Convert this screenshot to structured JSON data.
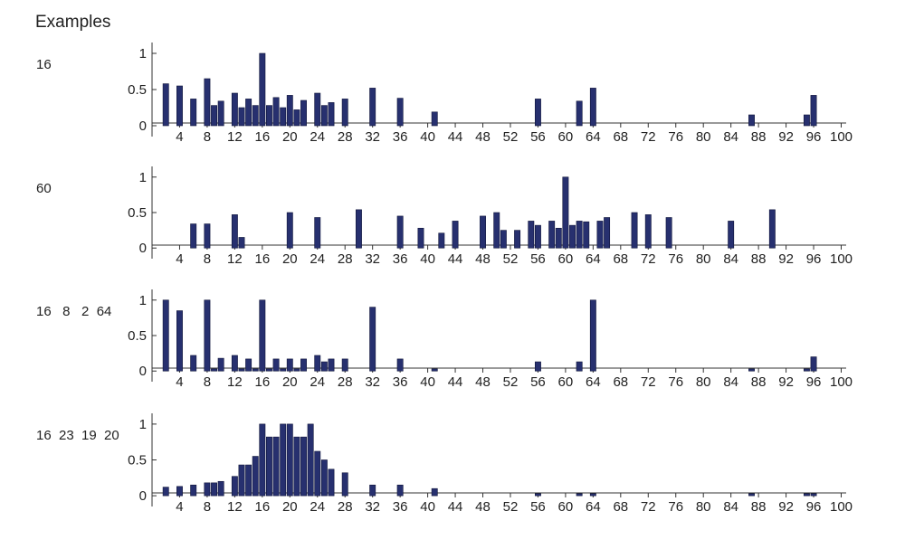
{
  "title": "Examples",
  "chart_data": [
    {
      "type": "bar",
      "example_label": "16",
      "xlim": [
        0,
        101
      ],
      "ylim": [
        -0.15,
        1.15
      ],
      "xticks": [
        4,
        8,
        12,
        16,
        20,
        24,
        28,
        32,
        36,
        40,
        44,
        48,
        52,
        56,
        60,
        64,
        68,
        72,
        76,
        80,
        84,
        88,
        92,
        96,
        100
      ],
      "yticks": [
        {
          "value": 1,
          "label": "1"
        },
        {
          "value": 0.5,
          "label": "0.5"
        },
        {
          "value": 0,
          "label": "0"
        }
      ],
      "x": [
        2,
        4,
        6,
        8,
        9,
        10,
        12,
        13,
        14,
        15,
        16,
        17,
        18,
        19,
        20,
        21,
        22,
        24,
        25,
        26,
        28,
        32,
        36,
        41,
        56,
        62,
        64,
        87,
        95,
        96
      ],
      "values": [
        0.58,
        0.55,
        0.37,
        0.65,
        0.28,
        0.34,
        0.45,
        0.25,
        0.37,
        0.28,
        1.0,
        0.28,
        0.39,
        0.25,
        0.42,
        0.22,
        0.35,
        0.45,
        0.28,
        0.32,
        0.37,
        0.52,
        0.38,
        0.19,
        0.37,
        0.34,
        0.52,
        0.15,
        0.15,
        0.42
      ]
    },
    {
      "type": "bar",
      "example_label": "60",
      "xlim": [
        0,
        101
      ],
      "ylim": [
        -0.15,
        1.15
      ],
      "xticks": [
        4,
        8,
        12,
        16,
        20,
        24,
        28,
        32,
        36,
        40,
        44,
        48,
        52,
        56,
        60,
        64,
        68,
        72,
        76,
        80,
        84,
        88,
        92,
        96,
        100
      ],
      "yticks": [
        {
          "value": 1,
          "label": "1"
        },
        {
          "value": 0.5,
          "label": "0.5"
        },
        {
          "value": 0,
          "label": "0"
        }
      ],
      "x": [
        6,
        8,
        12,
        13,
        20,
        24,
        30,
        36,
        39,
        42,
        44,
        48,
        50,
        51,
        53,
        55,
        56,
        58,
        59,
        60,
        61,
        62,
        63,
        65,
        66,
        70,
        72,
        75,
        84,
        90
      ],
      "values": [
        0.34,
        0.34,
        0.47,
        0.15,
        0.5,
        0.43,
        0.54,
        0.45,
        0.28,
        0.21,
        0.38,
        0.45,
        0.5,
        0.25,
        0.25,
        0.38,
        0.32,
        0.38,
        0.28,
        1.0,
        0.32,
        0.38,
        0.37,
        0.38,
        0.43,
        0.5,
        0.47,
        0.43,
        0.38,
        0.54
      ]
    },
    {
      "type": "bar",
      "example_label": "16   8   2  64",
      "xlim": [
        0,
        101
      ],
      "ylim": [
        -0.15,
        1.15
      ],
      "xticks": [
        4,
        8,
        12,
        16,
        20,
        24,
        28,
        32,
        36,
        40,
        44,
        48,
        52,
        56,
        60,
        64,
        68,
        72,
        76,
        80,
        84,
        88,
        92,
        96,
        100
      ],
      "yticks": [
        {
          "value": 1,
          "label": "1"
        },
        {
          "value": 0.5,
          "label": "0.5"
        },
        {
          "value": 0,
          "label": "0"
        }
      ],
      "x": [
        2,
        4,
        6,
        8,
        9,
        10,
        12,
        13,
        14,
        15,
        16,
        17,
        18,
        19,
        20,
        21,
        22,
        24,
        25,
        26,
        28,
        32,
        36,
        41,
        56,
        62,
        64,
        87,
        95,
        96
      ],
      "values": [
        1.0,
        0.85,
        0.22,
        1.0,
        0.03,
        0.18,
        0.22,
        0.03,
        0.17,
        0.03,
        1.0,
        0.03,
        0.17,
        0.03,
        0.17,
        0.03,
        0.17,
        0.22,
        0.13,
        0.17,
        0.17,
        0.9,
        0.17,
        0.03,
        0.13,
        0.13,
        1.0,
        0.03,
        0.03,
        0.2
      ]
    },
    {
      "type": "bar",
      "example_label": "16  23  19  20",
      "xlim": [
        0,
        101
      ],
      "ylim": [
        -0.15,
        1.15
      ],
      "xticks": [
        4,
        8,
        12,
        16,
        20,
        24,
        28,
        32,
        36,
        40,
        44,
        48,
        52,
        56,
        60,
        64,
        68,
        72,
        76,
        80,
        84,
        88,
        92,
        96,
        100
      ],
      "yticks": [
        {
          "value": 1,
          "label": "1"
        },
        {
          "value": 0.5,
          "label": "0.5"
        },
        {
          "value": 0,
          "label": "0"
        }
      ],
      "x": [
        2,
        4,
        6,
        8,
        9,
        10,
        12,
        13,
        14,
        15,
        16,
        17,
        18,
        19,
        20,
        21,
        22,
        23,
        24,
        25,
        26,
        28,
        32,
        36,
        41,
        56,
        62,
        64,
        87,
        95,
        96
      ],
      "values": [
        0.12,
        0.13,
        0.15,
        0.18,
        0.18,
        0.2,
        0.27,
        0.43,
        0.43,
        0.55,
        1.0,
        0.82,
        0.82,
        1.0,
        1.0,
        0.82,
        0.82,
        1.0,
        0.62,
        0.5,
        0.37,
        0.32,
        0.15,
        0.15,
        0.1,
        0.03,
        0.03,
        0.03,
        0.03,
        0.03,
        0.03
      ]
    }
  ]
}
